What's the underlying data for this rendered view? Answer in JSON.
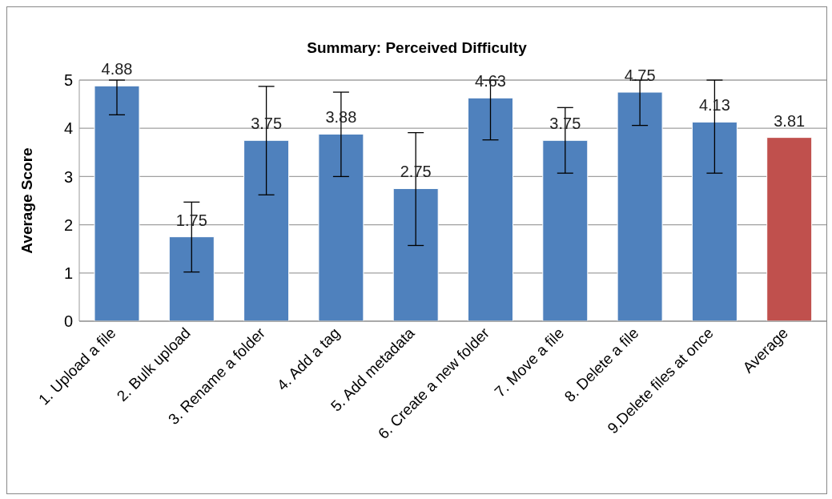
{
  "chart_data": {
    "type": "bar",
    "title": "Summary: Perceived Difficulty",
    "ylabel": "Average Score",
    "categories": [
      "1. Upload a file",
      "2. Bulk upload",
      "3. Rename a folder",
      "4. Add a tag",
      "5. Add metadata",
      "6. Create a new folder",
      "7. Move a file",
      "8. Delete a file",
      "9.Delete files at once",
      "Average"
    ],
    "values": [
      4.88,
      1.75,
      3.75,
      3.88,
      2.75,
      4.63,
      3.75,
      4.75,
      4.13,
      3.81
    ],
    "colors": [
      "#4f81bd",
      "#4f81bd",
      "#4f81bd",
      "#4f81bd",
      "#4f81bd",
      "#4f81bd",
      "#4f81bd",
      "#4f81bd",
      "#4f81bd",
      "#c0504d"
    ],
    "errors": [
      [
        4.28,
        5
      ],
      [
        1.02,
        2.47
      ],
      [
        2.62,
        4.87
      ],
      [
        3.0,
        4.75
      ],
      [
        1.57,
        3.91
      ],
      [
        3.76,
        5
      ],
      [
        3.07,
        4.43
      ],
      [
        4.06,
        5
      ],
      [
        3.07,
        5
      ],
      null
    ],
    "ylim": [
      0,
      5
    ],
    "yticks": [
      0,
      1,
      2,
      3,
      4,
      5
    ],
    "grid": "y",
    "data_labels": true,
    "legend": false
  }
}
